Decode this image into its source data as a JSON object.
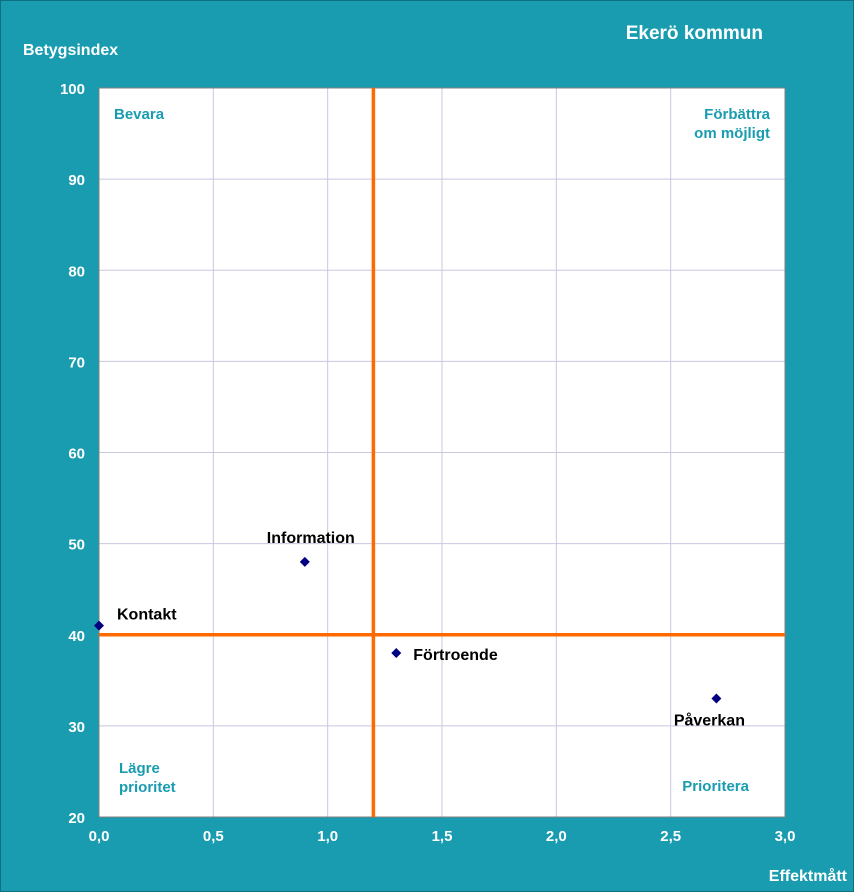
{
  "chart_data": {
    "type": "scatter",
    "title": "Ekerö kommun",
    "xlabel": "Effektmått",
    "ylabel": "Betygsindex",
    "xlim": [
      0,
      3
    ],
    "ylim": [
      20,
      100
    ],
    "xticks": [
      0,
      0.5,
      1,
      1.5,
      2,
      2.5,
      3
    ],
    "xtick_labels": [
      "0,0",
      "0,5",
      "1,0",
      "1,5",
      "2,0",
      "2,5",
      "3,0"
    ],
    "yticks": [
      20,
      30,
      40,
      50,
      60,
      70,
      80,
      90,
      100
    ],
    "ytick_labels": [
      "20",
      "30",
      "40",
      "50",
      "60",
      "70",
      "80",
      "90",
      "100"
    ],
    "grid": true,
    "reference_lines": {
      "x": 1.2,
      "y": 40
    },
    "points": [
      {
        "label": "Kontakt",
        "x": 0.0,
        "y": 41
      },
      {
        "label": "Information",
        "x": 0.9,
        "y": 48
      },
      {
        "label": "Förtroende",
        "x": 1.3,
        "y": 38
      },
      {
        "label": "Påverkan",
        "x": 2.7,
        "y": 33
      }
    ],
    "quadrant_labels": {
      "top_left": [
        "Bevara"
      ],
      "top_right": [
        "Förbättra",
        "om möjligt"
      ],
      "bottom_left": [
        "Lägre",
        "prioritet"
      ],
      "bottom_right": [
        "Prioritera"
      ]
    },
    "colors": {
      "background": "#1a9cb0",
      "plot_area": "#ffffff",
      "gridline": "#c8c8e0",
      "reference_line": "#ff6a00",
      "marker": "#000080",
      "quadrant_text": "#1a9cb0"
    }
  }
}
